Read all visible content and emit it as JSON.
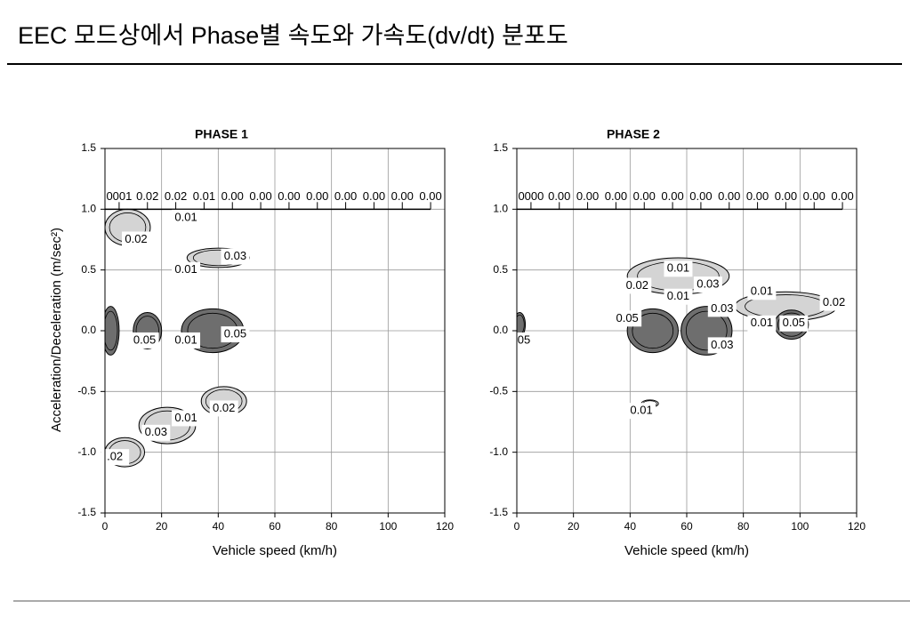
{
  "title": "EEC 모드상에서 Phase별 속도와  가속도(dv/dt) 분포도",
  "chart_data": [
    {
      "type": "contour",
      "title": "PHASE 1",
      "x_label": "Vehicle speed (km/h)",
      "y_label": "Acceleration/Deceleration (m/sec²)",
      "xlim": [
        0,
        120
      ],
      "ylim": [
        -1.5,
        1.5
      ],
      "xticks": [
        0,
        20,
        40,
        60,
        80,
        100,
        120
      ],
      "yticks": [
        -1.5,
        {
          "value": -1.0,
          "label": "-1.0"
        },
        -0.5,
        {
          "value": 0,
          "label": "0.0"
        },
        0.5,
        {
          "value": 1.0,
          "label": "1.0"
        },
        1.5
      ],
      "grid": true,
      "regions": [
        {
          "level": 0.01,
          "color": "#d4d4d4",
          "x": 8,
          "y": 0.85,
          "rx": 8,
          "ry": 0.15
        },
        {
          "level": 0.01,
          "color": "#d4d4d4",
          "x": 40,
          "y": 0.6,
          "rx": 11,
          "ry": 0.08
        },
        {
          "level": 0.05,
          "color": "#6e6e6e",
          "x": 2,
          "y": 0.0,
          "rx": 3,
          "ry": 0.2
        },
        {
          "level": 0.05,
          "color": "#6e6e6e",
          "x": 15,
          "y": 0.0,
          "rx": 5,
          "ry": 0.15
        },
        {
          "level": 0.05,
          "color": "#6e6e6e",
          "x": 38,
          "y": 0.0,
          "rx": 11,
          "ry": 0.18
        },
        {
          "level": 0.01,
          "color": "#d4d4d4",
          "x": 42,
          "y": -0.58,
          "rx": 8,
          "ry": 0.12
        },
        {
          "level": 0.01,
          "color": "#d4d4d4",
          "x": 22,
          "y": -0.78,
          "rx": 10,
          "ry": 0.15
        },
        {
          "level": 0.01,
          "color": "#d4d4d4",
          "x": 7,
          "y": -1.0,
          "rx": 7,
          "ry": 0.12
        }
      ],
      "top_row": {
        "y": 1.1,
        "line_y": 1.0,
        "line_x": [
          0,
          115
        ],
        "labels": [
          "0001",
          "0.02",
          "0.02",
          "0.01",
          "0.00",
          "0.00",
          "0.00",
          "0.00",
          "0.00",
          "0.00",
          "0.00",
          "0.00"
        ],
        "x": [
          5,
          15,
          25,
          35,
          45,
          55,
          65,
          75,
          85,
          95,
          105,
          115
        ]
      },
      "labels": [
        {
          "text": "0.01",
          "x": 28.6,
          "y": 0.93
        },
        {
          "text": "0.02",
          "x": 11,
          "y": 0.75
        },
        {
          "text": "0.03",
          "x": 46,
          "y": 0.61
        },
        {
          "text": "0.01",
          "x": 28.6,
          "y": 0.5
        },
        {
          "text": "0.05",
          "x": 14,
          "y": -0.08
        },
        {
          "text": "0.01",
          "x": 28.6,
          "y": -0.08
        },
        {
          "text": "0.05",
          "x": 46,
          "y": -0.03
        },
        {
          "text": "0.02",
          "x": 42,
          "y": -0.64
        },
        {
          "text": "0.01",
          "x": 28.6,
          "y": -0.72
        },
        {
          "text": "0.03",
          "x": 18,
          "y": -0.84
        },
        {
          "text": ".02",
          "x": 3.5,
          "y": -1.04
        }
      ]
    },
    {
      "type": "contour",
      "title": "PHASE 2",
      "x_label": "Vehicle speed (km/h)",
      "xlim": [
        0,
        120
      ],
      "ylim": [
        -1.5,
        1.5
      ],
      "xticks": [
        0,
        20,
        40,
        60,
        80,
        100,
        120
      ],
      "yticks": [
        -1.5,
        {
          "value": -1.0,
          "label": "-1.0"
        },
        -0.5,
        {
          "value": 0,
          "label": "0.0"
        },
        0.5,
        {
          "value": 1.0,
          "label": "1.0"
        },
        1.5
      ],
      "grid": true,
      "regions": [
        {
          "level": 0.01,
          "color": "#d4d4d4",
          "x": 57,
          "y": 0.45,
          "rx": 18,
          "ry": 0.15
        },
        {
          "level": 0.01,
          "color": "#d4d4d4",
          "x": 95,
          "y": 0.2,
          "rx": 18,
          "ry": 0.12
        },
        {
          "level": 0.05,
          "color": "#6e6e6e",
          "x": 48,
          "y": 0.0,
          "rx": 9,
          "ry": 0.18
        },
        {
          "level": 0.05,
          "color": "#6e6e6e",
          "x": 67,
          "y": 0.0,
          "rx": 9,
          "ry": 0.2
        },
        {
          "level": 0.05,
          "color": "#6e6e6e",
          "x": 97,
          "y": 0.05,
          "rx": 6,
          "ry": 0.12
        },
        {
          "level": 0.05,
          "color": "#6e6e6e",
          "x": 1,
          "y": 0.05,
          "rx": 2,
          "ry": 0.1
        },
        {
          "level": 0.01,
          "color": "#ffffff",
          "x": 47,
          "y": -0.6,
          "rx": 3,
          "ry": 0.03
        }
      ],
      "top_row": {
        "y": 1.1,
        "line_y": 1.0,
        "line_x": [
          0,
          115
        ],
        "labels": [
          "0000",
          "0.00",
          "0.00",
          "0.00",
          "0.00",
          "0.00",
          "0.00",
          "0.00",
          "0.00",
          "0.00",
          "0.00",
          "0.00"
        ],
        "x": [
          5,
          15,
          25,
          35,
          45,
          55,
          65,
          75,
          85,
          95,
          105,
          115
        ]
      },
      "labels": [
        {
          "text": "0.01",
          "x": 57,
          "y": 0.51
        },
        {
          "text": "0.02",
          "x": 42.5,
          "y": 0.37
        },
        {
          "text": "0.03",
          "x": 67.5,
          "y": 0.38
        },
        {
          "text": "0.01",
          "x": 57,
          "y": 0.28
        },
        {
          "text": "0.01",
          "x": 86.5,
          "y": 0.32
        },
        {
          "text": "0.02",
          "x": 112,
          "y": 0.23
        },
        {
          "text": "0.03",
          "x": 72.5,
          "y": 0.18
        },
        {
          "text": "0.05",
          "x": 39,
          "y": 0.1
        },
        {
          "text": "0.01",
          "x": 86.5,
          "y": 0.06
        },
        {
          "text": "0.05",
          "x": 97.8,
          "y": 0.06
        },
        {
          "text": "05",
          "x": 2.5,
          "y": -0.08
        },
        {
          "text": "0.03",
          "x": 72.5,
          "y": -0.12
        },
        {
          "text": "0.01",
          "x": 44,
          "y": -0.66
        }
      ]
    }
  ]
}
